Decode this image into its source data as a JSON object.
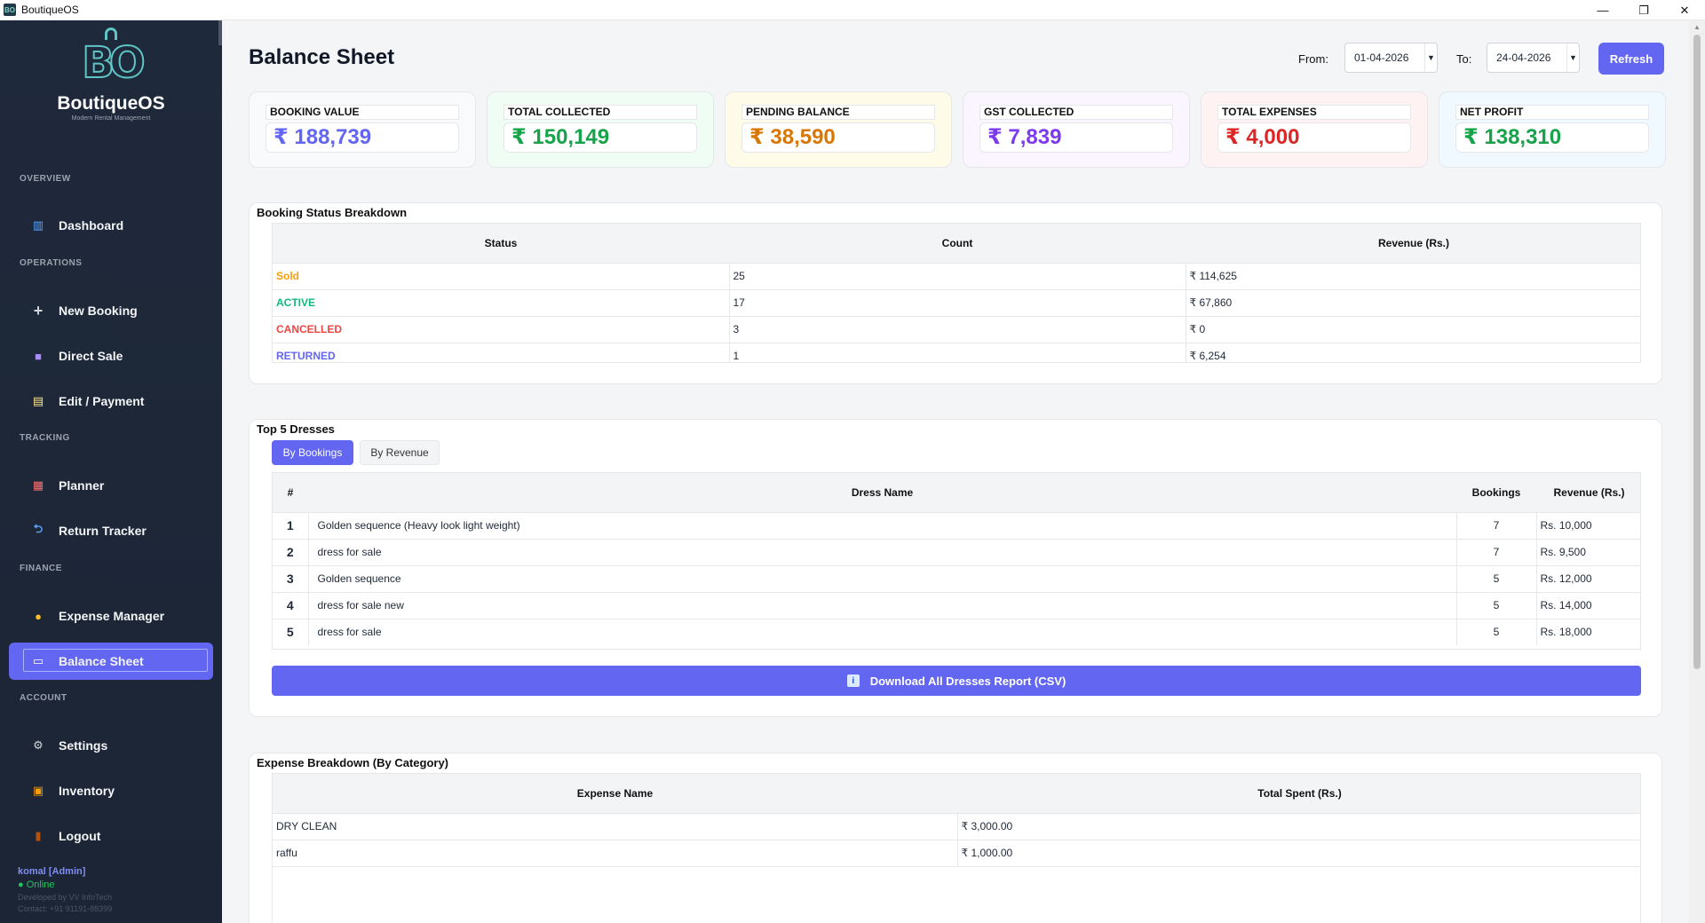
{
  "window": {
    "title": "BoutiqueOS",
    "min": "—",
    "max": "❐",
    "close": "✕"
  },
  "sidebar": {
    "logo_name": "BoutiqueOS",
    "logo_sub": "Modern Rental Management",
    "sections": {
      "overview": "OVERVIEW",
      "operations": "OPERATIONS",
      "tracking": "TRACKING",
      "finance": "FINANCE",
      "account": "ACCOUNT"
    },
    "items": {
      "dashboard": "Dashboard",
      "new_booking": "New Booking",
      "direct_sale": "Direct Sale",
      "edit_payment": "Edit / Payment",
      "planner": "Planner",
      "return_tracker": "Return Tracker",
      "expense_manager": "Expense Manager",
      "balance_sheet": "Balance Sheet",
      "settings": "Settings",
      "inventory": "Inventory",
      "logout": "Logout"
    },
    "user": {
      "name": "komal  [Admin]",
      "status": "● Online",
      "dev": "Developed by VV InfoTech",
      "contact": "Contact: +91 91191-88399"
    }
  },
  "header": {
    "title": "Balance Sheet",
    "from_label": "From:",
    "from_value": "01-04-2026",
    "to_label": "To:",
    "to_value": "24-04-2026",
    "refresh": "Refresh"
  },
  "stats": [
    {
      "label": "BOOKING VALUE",
      "value": "₹ 188,739",
      "color": "#6366f1",
      "bg": "#f8fafc"
    },
    {
      "label": "TOTAL COLLECTED",
      "value": "₹ 150,149",
      "color": "#16a34a",
      "bg": "#f0fdf4"
    },
    {
      "label": "PENDING BALANCE",
      "value": "₹ 38,590",
      "color": "#d97706",
      "bg": "#fefce8"
    },
    {
      "label": "GST COLLECTED",
      "value": "₹ 7,839",
      "color": "#7c3aed",
      "bg": "#faf5ff"
    },
    {
      "label": "TOTAL EXPENSES",
      "value": "₹ 4,000",
      "color": "#dc2626",
      "bg": "#fef2f2"
    },
    {
      "label": "NET PROFIT",
      "value": "₹ 138,310",
      "color": "#16a34a",
      "bg": "#f0f9ff"
    }
  ],
  "booking_status": {
    "title": "Booking Status Breakdown",
    "headers": [
      "Status",
      "Count",
      "Revenue (Rs.)"
    ],
    "rows": [
      {
        "status": "Sold",
        "count": "25",
        "revenue": "₹ 114,625"
      },
      {
        "status": "ACTIVE",
        "count": "17",
        "revenue": "₹ 67,860"
      },
      {
        "status": "CANCELLED",
        "count": "3",
        "revenue": "₹ 0"
      },
      {
        "status": "RETURNED",
        "count": "1",
        "revenue": "₹ 6,254"
      }
    ]
  },
  "top_dresses": {
    "title": "Top 5 Dresses",
    "tab_bookings": "By Bookings",
    "tab_revenue": "By Revenue",
    "headers": [
      "#",
      "Dress Name",
      "Bookings",
      "Revenue (Rs.)"
    ],
    "rows": [
      {
        "rank": "1",
        "name": "Golden sequence (Heavy look light weight)",
        "bookings": "7",
        "revenue": "Rs. 10,000"
      },
      {
        "rank": "2",
        "name": "dress for sale",
        "bookings": "7",
        "revenue": "Rs. 9,500"
      },
      {
        "rank": "3",
        "name": "Golden sequence",
        "bookings": "5",
        "revenue": "Rs. 12,000"
      },
      {
        "rank": "4",
        "name": "dress for sale new",
        "bookings": "5",
        "revenue": "Rs. 14,000"
      },
      {
        "rank": "5",
        "name": "dress for sale",
        "bookings": "5",
        "revenue": "Rs. 18,000"
      }
    ],
    "download": "Download All Dresses Report (CSV)"
  },
  "expenses": {
    "title": "Expense Breakdown (By Category)",
    "headers": [
      "Expense Name",
      "Total Spent (Rs.)"
    ],
    "rows": [
      {
        "name": "DRY CLEAN",
        "total": "₹ 3,000.00"
      },
      {
        "name": "raffu",
        "total": "₹ 1,000.00"
      }
    ]
  }
}
